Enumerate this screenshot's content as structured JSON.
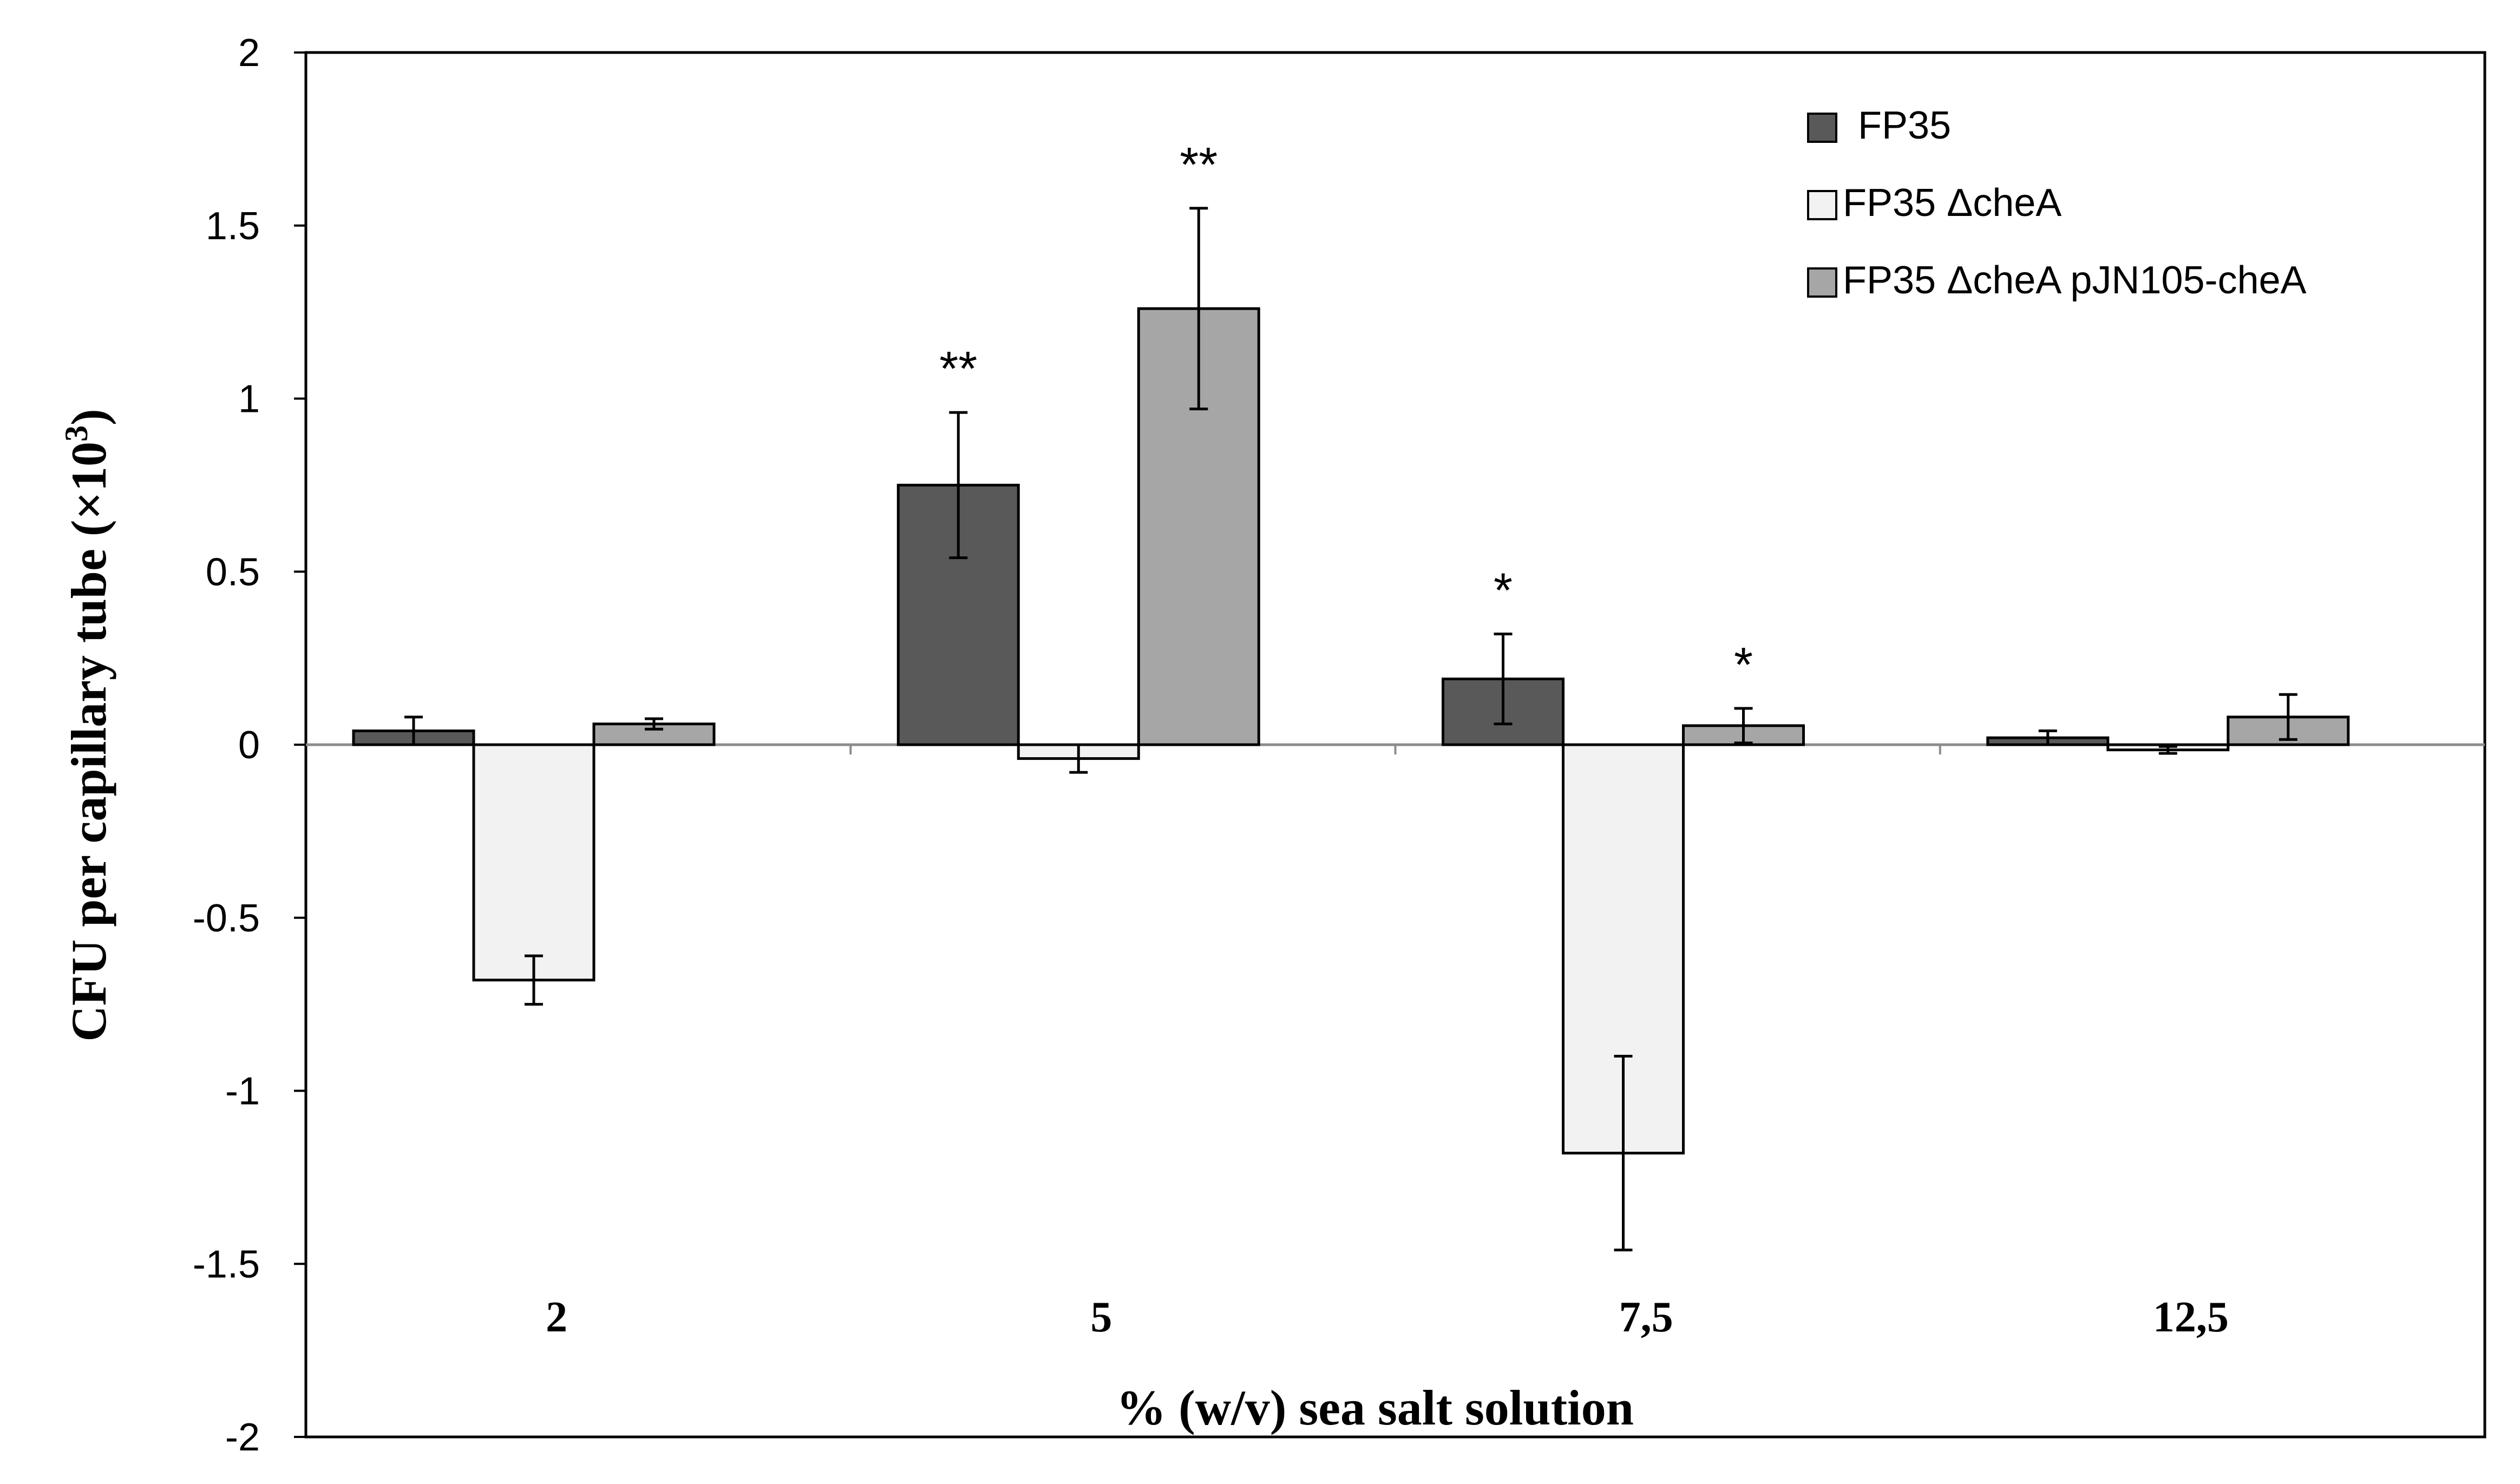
{
  "chart_data": {
    "type": "bar",
    "title": "",
    "xlabel": "% (w/v) sea salt solution",
    "ylabel_main": "CFU per capillary tube (×10",
    "ylabel_sup": "3",
    "ylabel_close": ")",
    "ylim": [
      -2,
      2
    ],
    "yticks": [
      2,
      1.5,
      1,
      0.5,
      0,
      -0.5,
      -1,
      -1.5,
      -2
    ],
    "ytick_labels": [
      "2",
      "1.5",
      "1",
      "0.5",
      "0",
      "-0.5",
      "-1",
      "-1.5",
      "-2"
    ],
    "categories": [
      "2",
      "5",
      "7,5",
      "12,5"
    ],
    "legend_position": "top-right",
    "series": [
      {
        "name": "FP35",
        "color": "#595959",
        "values": [
          0.04,
          0.75,
          0.19,
          0.02
        ],
        "errors": [
          0.04,
          0.21,
          0.13,
          0.02
        ],
        "significance": [
          "",
          "**",
          "*",
          ""
        ]
      },
      {
        "name": "FP35 ΔcheA",
        "color": "#f2f2f2",
        "values": [
          -0.68,
          -0.04,
          -1.18,
          -0.015
        ],
        "errors": [
          0.07,
          0.04,
          0.28,
          0.01
        ],
        "significance": [
          "",
          "",
          "",
          ""
        ]
      },
      {
        "name": "FP35 ΔcheA pJN105-cheA",
        "color": "#a6a6a6",
        "values": [
          0.06,
          1.26,
          0.055,
          0.08
        ],
        "errors": [
          0.015,
          0.29,
          0.05,
          0.065
        ],
        "significance": [
          "",
          "**",
          "*",
          ""
        ]
      }
    ]
  }
}
